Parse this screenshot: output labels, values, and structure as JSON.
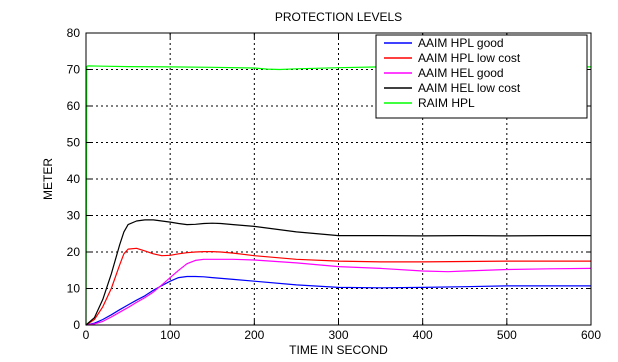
{
  "chart_data": {
    "type": "line",
    "title": "PROTECTION LEVELS",
    "xlabel": "TIME IN SECOND",
    "ylabel": "METER",
    "xlim": [
      0,
      600
    ],
    "ylim": [
      0,
      80
    ],
    "xticks": [
      0,
      100,
      200,
      300,
      400,
      500,
      600
    ],
    "yticks": [
      0,
      10,
      20,
      30,
      40,
      50,
      60,
      70,
      80
    ],
    "grid": true,
    "legend_position": "top-right",
    "series": [
      {
        "name": "AAIM HPL good",
        "color": "#0000ff",
        "x": [
          0,
          10,
          20,
          30,
          40,
          50,
          60,
          70,
          80,
          90,
          100,
          110,
          120,
          130,
          140,
          150,
          175,
          200,
          250,
          300,
          350,
          400,
          450,
          500,
          550,
          600
        ],
        "y": [
          0,
          0.5,
          1.5,
          2.8,
          4.2,
          5.5,
          6.8,
          8,
          9.5,
          10.8,
          12,
          13,
          13.3,
          13.3,
          13.2,
          13,
          12.5,
          12,
          11,
          10.3,
          10.2,
          10.3,
          10.5,
          10.7,
          10.7,
          10.7
        ]
      },
      {
        "name": "AAIM HPL low cost",
        "color": "#ff0000",
        "x": [
          0,
          10,
          20,
          30,
          40,
          45,
          50,
          60,
          70,
          80,
          90,
          100,
          110,
          120,
          130,
          140,
          150,
          160,
          175,
          200,
          250,
          300,
          350,
          400,
          450,
          500,
          550,
          600
        ],
        "y": [
          0,
          1.5,
          5,
          10,
          16.5,
          19.5,
          20.8,
          21,
          20.3,
          19.5,
          19,
          19.1,
          19.5,
          19.8,
          20,
          20.1,
          20.1,
          20,
          19.7,
          19,
          18,
          17.5,
          17.3,
          17.3,
          17.4,
          17.5,
          17.5,
          17.5
        ]
      },
      {
        "name": "AAIM HEL good",
        "color": "#ff00ff",
        "x": [
          0,
          10,
          20,
          30,
          40,
          50,
          60,
          70,
          80,
          90,
          100,
          110,
          120,
          130,
          140,
          150,
          175,
          200,
          250,
          300,
          350,
          400,
          430,
          450,
          500,
          550,
          600
        ],
        "y": [
          0,
          0.3,
          1,
          2.2,
          3.5,
          4.8,
          6.2,
          7.5,
          9,
          11,
          13,
          15,
          16.8,
          17.7,
          18,
          18,
          18,
          17.8,
          17,
          16,
          15.5,
          14.8,
          14.6,
          14.8,
          15.2,
          15.4,
          15.5
        ]
      },
      {
        "name": "AAIM HEL low cost",
        "color": "#000000",
        "x": [
          0,
          10,
          20,
          30,
          40,
          45,
          50,
          60,
          70,
          80,
          90,
          100,
          110,
          120,
          130,
          140,
          150,
          160,
          175,
          200,
          250,
          300,
          350,
          400,
          450,
          500,
          550,
          600
        ],
        "y": [
          0,
          2,
          7,
          14,
          22,
          25.5,
          27.5,
          28.5,
          28.8,
          28.8,
          28.5,
          28.2,
          27.8,
          27.5,
          27.6,
          27.8,
          27.9,
          27.8,
          27.5,
          27,
          25.5,
          24.5,
          24.5,
          24.4,
          24.5,
          24.4,
          24.5,
          24.5
        ]
      },
      {
        "name": "RAIM HPL",
        "color": "#00ff00",
        "x": [
          0,
          1,
          2,
          20,
          50,
          100,
          150,
          200,
          215,
          230,
          250,
          300,
          350,
          400,
          450,
          500,
          550,
          600
        ],
        "y": [
          0,
          70.8,
          71,
          70.9,
          70.8,
          70.7,
          70.6,
          70.4,
          70.1,
          70.0,
          70.2,
          70.5,
          70.7,
          70.8,
          70.8,
          70.7,
          70.7,
          70.7
        ]
      }
    ]
  }
}
